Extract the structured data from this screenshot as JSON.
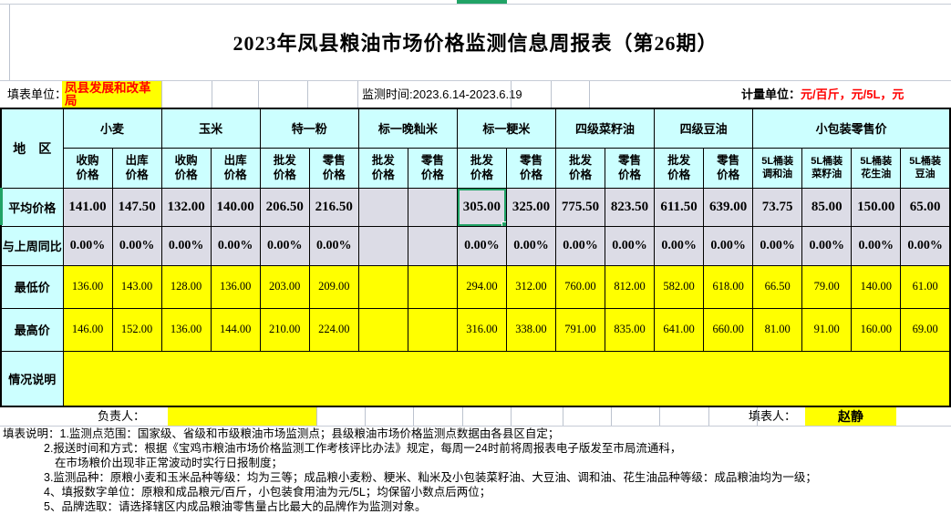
{
  "title": "2023年凤县粮油市场价格监测信息周报表（第26期）",
  "info_bar": {
    "unit_label": "填表单位：",
    "unit_value": "凤县发展和改革局",
    "monitor_time": "监测时间:2023.6.14-2023.6.19",
    "measure_label": "计量单位：",
    "measure_value": "元/百斤，元/5L，元"
  },
  "table": {
    "region_header": "地　区",
    "groups": [
      {
        "label": "小麦",
        "columns": [
          "收购\n价格",
          "出库\n价格"
        ]
      },
      {
        "label": "玉米",
        "columns": [
          "收购\n价格",
          "出库\n价格"
        ]
      },
      {
        "label": "特一粉",
        "columns": [
          "批发\n价格",
          "零售\n价格"
        ]
      },
      {
        "label": "标一晚籼米",
        "columns": [
          "批发\n价格",
          "零售\n价格"
        ]
      },
      {
        "label": "标一粳米",
        "columns": [
          "批发\n价格",
          "零售\n价格"
        ]
      },
      {
        "label": "四级菜籽油",
        "columns": [
          "批发\n价格",
          "零售\n价格"
        ]
      },
      {
        "label": "四级豆油",
        "columns": [
          "批发\n价格",
          "零售\n价格"
        ]
      },
      {
        "label": "小包装零售价",
        "columns": [
          "5L桶装\n调和油",
          "5L桶装\n菜籽油",
          "5L桶装\n花生油",
          "5L桶装\n豆油"
        ]
      }
    ],
    "rows": [
      {
        "key": "avg",
        "label": "平均价格",
        "values": [
          "141.00",
          "147.50",
          "132.00",
          "140.00",
          "206.50",
          "216.50",
          "",
          "",
          "305.00",
          "325.00",
          "775.50",
          "823.50",
          "611.50",
          "639.00",
          "73.75",
          "85.00",
          "150.00",
          "65.00"
        ]
      },
      {
        "key": "wow",
        "label": "与上周同比",
        "values": [
          "0.00%",
          "0.00%",
          "0.00%",
          "0.00%",
          "0.00%",
          "0.00%",
          "",
          "",
          "0.00%",
          "0.00%",
          "0.00%",
          "0.00%",
          "0.00%",
          "0.00%",
          "0.00%",
          "0.00%",
          "0.00%",
          "0.00%"
        ]
      },
      {
        "key": "min",
        "label": "最低价",
        "values": [
          "136.00",
          "143.00",
          "128.00",
          "136.00",
          "203.00",
          "209.00",
          "",
          "",
          "294.00",
          "312.00",
          "760.00",
          "812.00",
          "582.00",
          "618.00",
          "66.50",
          "79.00",
          "140.00",
          "61.00"
        ]
      },
      {
        "key": "max",
        "label": "最高价",
        "values": [
          "146.00",
          "152.00",
          "136.00",
          "144.00",
          "210.00",
          "224.00",
          "",
          "",
          "316.00",
          "338.00",
          "791.00",
          "835.00",
          "641.00",
          "660.00",
          "81.00",
          "91.00",
          "160.00",
          "69.00"
        ]
      }
    ],
    "note_row": {
      "label": "情况说明",
      "value": ""
    },
    "selected_cell": {
      "row_key": "avg",
      "col_index": 8,
      "value": "305.00"
    }
  },
  "signature": {
    "manager_label": "负责人：",
    "manager_value": "",
    "filler_label": "填表人：",
    "filler_value": "赵静"
  },
  "notes": [
    {
      "level": 0,
      "text": "填表说明：1.监测点范围：国家级、省级和市级粮油市场监测点；县级粮油市场价格监测点数据由各县区自定；"
    },
    {
      "level": 1,
      "text": "2.报送时间和方式：根据《宝鸡市粮油市场价格监测工作考核评比办法》规定，每周一24时前将周报表电子版发至市局流通科，"
    },
    {
      "level": 2,
      "text": "在市场粮价出现非正常波动时实行日报制度；"
    },
    {
      "level": 1,
      "text": "3.监测品种：原粮小麦和玉米品种等级：均为三等；成品粮小麦粉、粳米、籼米及小包装菜籽油、大豆油、调和油、花生油品种等级：成品粮油均为一级；"
    },
    {
      "level": 1,
      "text": "4、填报数字单位：原粮和成品粮元/百斤，小包装食用油为元/5L；均保留小数点后两位；"
    },
    {
      "level": 1,
      "text": "5、品牌选取：请选择辖区内成品粮油零售量占比最大的品牌作为监测对象。"
    }
  ],
  "colors": {
    "accent_green": "#21a366",
    "highlight_yellow": "#ffff00",
    "header_cyan": "#ccffff",
    "data_gray": "#dcdce6",
    "alert_red": "#ff0000"
  }
}
